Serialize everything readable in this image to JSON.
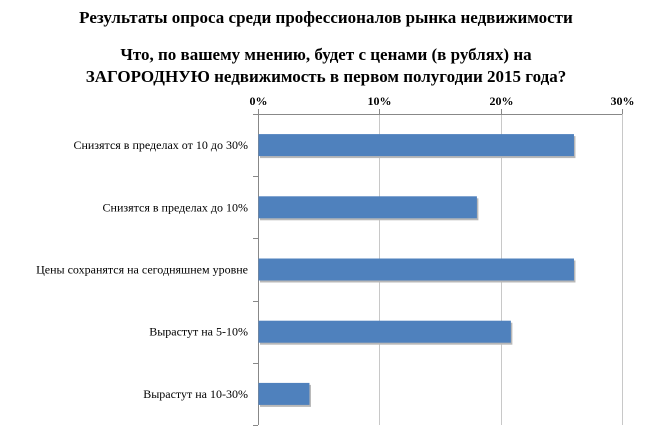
{
  "chart_data": {
    "type": "bar",
    "orientation": "horizontal",
    "title": "Результаты опроса среди профессионалов рынка недвижимости",
    "subtitle_lines": [
      "Что, по вашему мнению, будет с ценами (в рублях) на",
      "ЗАГОРОДНУЮ недвижимость в первом полугодии 2015 года?"
    ],
    "categories": [
      "Снизятся в пределах от 10 до 30%",
      "Снизятся в пределах до 10%",
      "Цены сохранятся на сегодняшнем уровне",
      "Вырастут на 5-10%",
      "Вырастут на 10-30%"
    ],
    "values": [
      26,
      18,
      26,
      20.8,
      4.2
    ],
    "xlim": [
      0,
      30
    ],
    "x_ticks": [
      0,
      10,
      20,
      30
    ],
    "x_tick_labels": [
      "0%",
      "10%",
      "20%",
      "30%"
    ],
    "x_axis_position": "top",
    "grid": true,
    "legend": "none",
    "bar_color": "#4f81bd",
    "grid_color": "#c8c8c8",
    "axis_color": "#888888"
  }
}
